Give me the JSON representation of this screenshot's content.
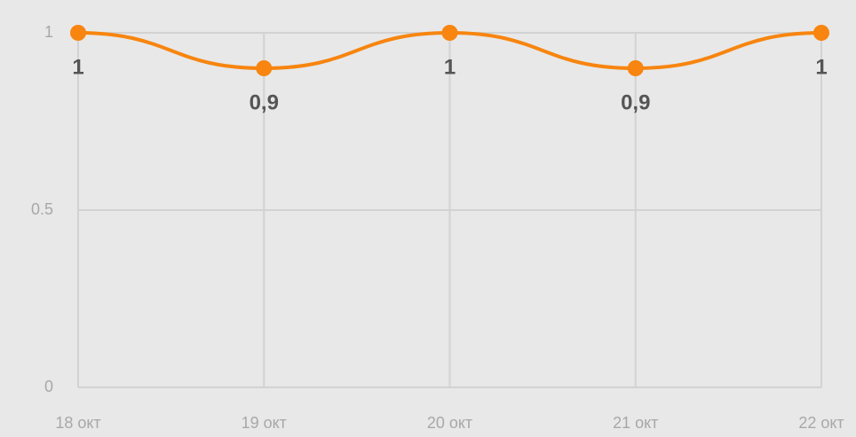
{
  "chart_data": {
    "type": "line",
    "categories": [
      "18 окт",
      "19 окт",
      "20 окт",
      "21 окт",
      "22 окт"
    ],
    "series": [
      {
        "color": "#f7850f",
        "values": [
          1,
          0.9,
          1,
          0.9,
          1
        ],
        "value_labels": [
          "1",
          "0,9",
          "1",
          "0,9",
          "1"
        ]
      }
    ],
    "ylim": [
      0,
      1
    ],
    "yticks": [
      0,
      0.5,
      1
    ],
    "grid": true
  }
}
